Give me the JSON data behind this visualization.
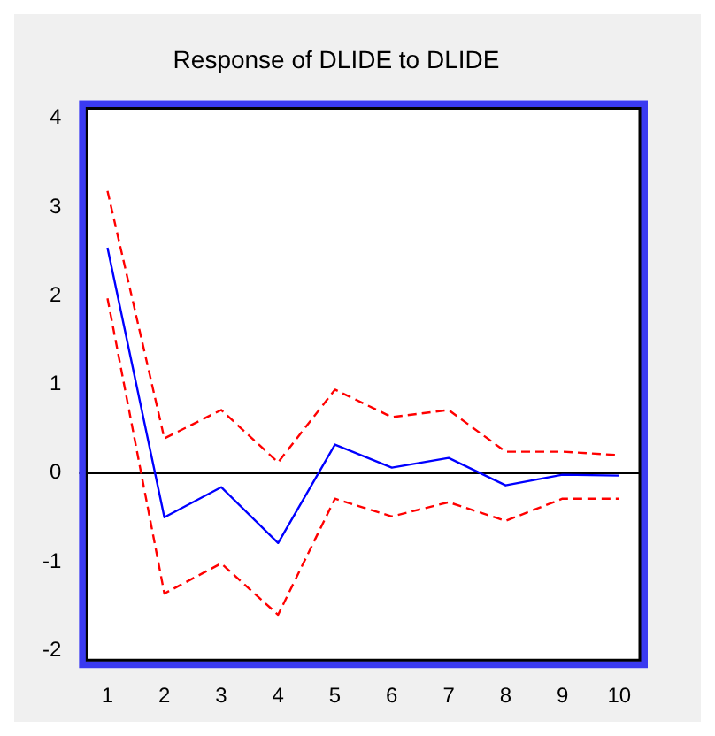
{
  "chart_data": {
    "type": "line",
    "title": "Response of DLIDE to DLIDE",
    "categories": [
      "1",
      "2",
      "3",
      "4",
      "5",
      "6",
      "7",
      "8",
      "9",
      "10"
    ],
    "series": [
      {
        "color": "#ff0000",
        "line_style": "dashed",
        "values": [
          3.18,
          0.39,
          0.71,
          0.12,
          0.94,
          0.63,
          0.71,
          0.24,
          0.24,
          0.2
        ]
      },
      {
        "color": "#0000ff",
        "line_style": "solid",
        "values": [
          2.54,
          -0.5,
          -0.16,
          -0.79,
          0.32,
          0.06,
          0.17,
          -0.14,
          -0.02,
          -0.03
        ]
      },
      {
        "color": "#ff0000",
        "line_style": "dashed",
        "values": [
          1.97,
          -1.36,
          -1.02,
          -1.6,
          -0.29,
          -0.49,
          -0.33,
          -0.54,
          -0.29,
          -0.29
        ]
      }
    ],
    "ylim": [
      -2.2,
      4.2
    ],
    "yticks": [
      -2,
      -1,
      0,
      1,
      2,
      3,
      4
    ],
    "ref_lines": [
      {
        "axis": "y",
        "value": 0,
        "color": "#000000"
      }
    ],
    "grid": false,
    "legend": false,
    "marker": "none"
  }
}
